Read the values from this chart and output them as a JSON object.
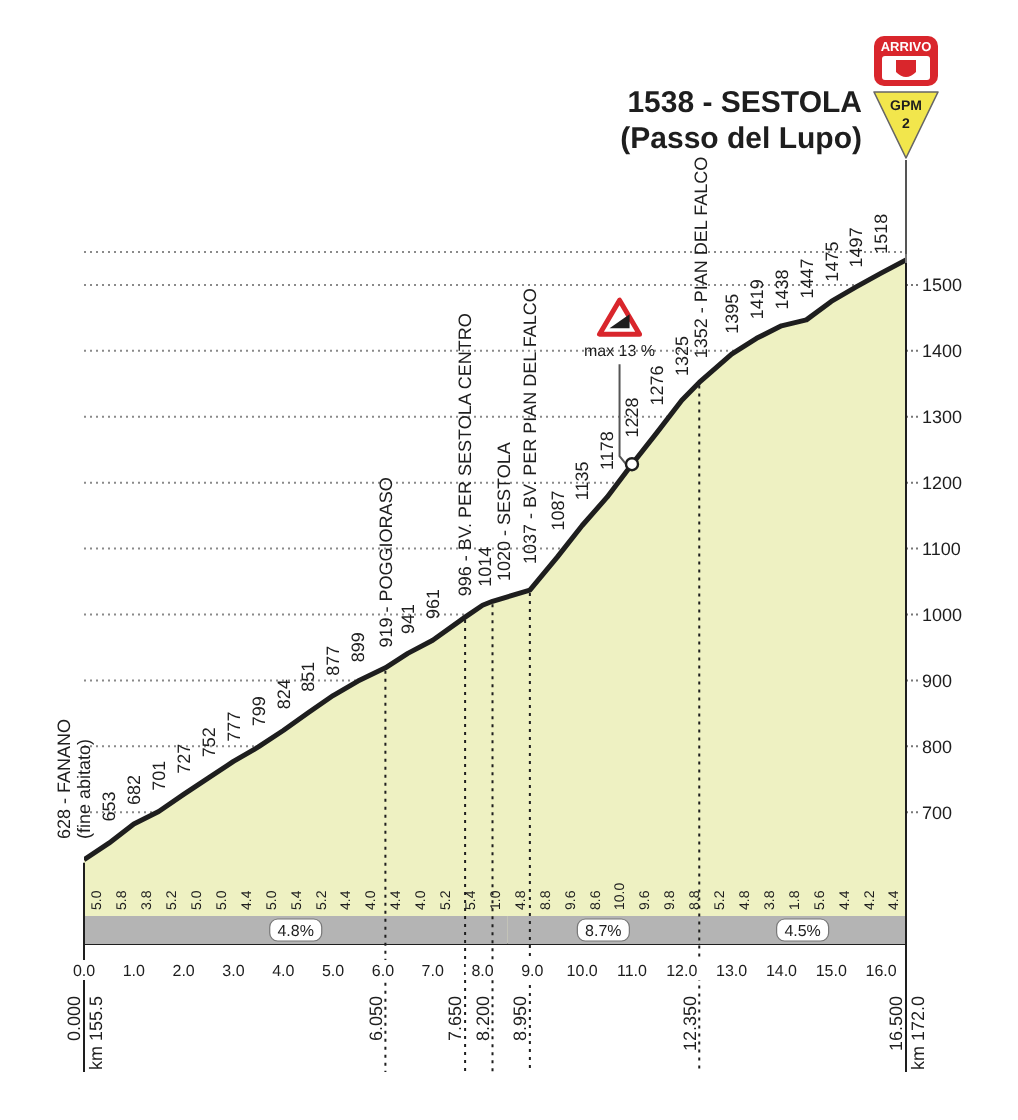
{
  "chart_data": {
    "type": "area",
    "title": "1538 - SESTOLA\n(Passo del Lupo)",
    "x": [
      0,
      0.5,
      1,
      1.5,
      2,
      2.5,
      3,
      3.5,
      4,
      4.5,
      5,
      5.5,
      6.05,
      6.5,
      7,
      7.65,
      8,
      8.2,
      8.95,
      9.5,
      10,
      10.5,
      11,
      11.5,
      12,
      12.35,
      13,
      13.5,
      14,
      14.5,
      15,
      15.5,
      16,
      16.5
    ],
    "values": [
      628,
      653,
      682,
      701,
      727,
      752,
      777,
      799,
      824,
      851,
      877,
      899,
      919,
      941,
      961,
      996,
      1014,
      1020,
      1037,
      1087,
      1135,
      1178,
      1228,
      1276,
      1325,
      1352,
      1395,
      1419,
      1438,
      1447,
      1475,
      1497,
      1518,
      1538
    ],
    "value_labels": [
      "628 - FANANO\n(fine abitato)",
      "653",
      "682",
      "701",
      "727",
      "752",
      "777",
      "799",
      "824",
      "851",
      "877",
      "899",
      "919 - POGGIORASO",
      "941",
      "961",
      "996 - BV. PER SESTOLA CENTRO",
      "1014",
      "1020 - SESTOLA",
      "1037 - BV. PER PIAN DEL FALCO",
      "1087",
      "1135",
      "1178",
      "1228",
      "1276",
      "1325",
      "1352 - PIAN DEL FALCO",
      "1395",
      "1419",
      "1438",
      "1447",
      "1475",
      "1497",
      "1518",
      null
    ],
    "color": "#eef1c2",
    "xlim": [
      0,
      16.5
    ],
    "xticks": [
      {
        "value": 0,
        "label": "0.0"
      },
      {
        "value": 1,
        "label": "1.0"
      },
      {
        "value": 2,
        "label": "2.0"
      },
      {
        "value": 3,
        "label": "3.0"
      },
      {
        "value": 4,
        "label": "4.0"
      },
      {
        "value": 5,
        "label": "5.0"
      },
      {
        "value": 6,
        "label": "6.0"
      },
      {
        "value": 7,
        "label": "7.0"
      },
      {
        "value": 8,
        "label": "8.0"
      },
      {
        "value": 9,
        "label": "9.0"
      },
      {
        "value": 10,
        "label": "10.0"
      },
      {
        "value": 11,
        "label": "11.0"
      },
      {
        "value": 12,
        "label": "12.0"
      },
      {
        "value": 13,
        "label": "13.0"
      },
      {
        "value": 14,
        "label": "14.0"
      },
      {
        "value": 15,
        "label": "15.0"
      },
      {
        "value": 16,
        "label": "16.0"
      }
    ],
    "ylim": [
      500,
      1550
    ],
    "yticks": [
      700,
      800,
      900,
      1000,
      1100,
      1200,
      1300,
      1400,
      1500
    ],
    "grid": "y",
    "ref_lines": [
      {
        "axis": "x",
        "value": 0,
        "label": "0.000\nkm 155.5",
        "line_style": "solid"
      },
      {
        "axis": "x",
        "value": 6.05,
        "label": "6.050",
        "line_style": "dotted"
      },
      {
        "axis": "x",
        "value": 7.65,
        "label": "7.650",
        "line_style": "dotted"
      },
      {
        "axis": "x",
        "value": 8.2,
        "label": "8.200",
        "line_style": "dotted"
      },
      {
        "axis": "x",
        "value": 8.95,
        "label": "8.950",
        "line_style": "dotted"
      },
      {
        "axis": "x",
        "value": 12.35,
        "label": "12.350",
        "line_style": "dotted"
      },
      {
        "axis": "x",
        "value": 16.5,
        "label": "16.500\nkm 172.0",
        "line_style": "solid"
      }
    ],
    "bands": [
      {
        "axis": "x",
        "from": 0,
        "to": 8.5,
        "label": "4.8%",
        "color": "#b4b4b4"
      },
      {
        "axis": "x",
        "from": 8.5,
        "to": 12.35,
        "label": "8.7%",
        "color": "#b4b4b4"
      },
      {
        "axis": "x",
        "from": 12.35,
        "to": 16.5,
        "label": "4.5%",
        "color": "#b4b4b4"
      }
    ],
    "annotations": [
      "ARRIVO",
      "GPM",
      "2",
      "5.0",
      "5.8",
      "3.8",
      "5.2",
      "5.0",
      "5.0",
      "4.4",
      "5.0",
      "5.4",
      "5.2",
      "4.4",
      "4.0",
      "4.4",
      "4.0",
      "5.2",
      "5.4",
      "1.0",
      "4.8",
      "8.8",
      "9.6",
      "8.6",
      "10.0",
      "9.6",
      "9.8",
      "8.8",
      "5.2",
      "4.8",
      "3.8",
      "1.8",
      "5.6",
      "4.4",
      "4.2",
      "4.4",
      {
        "text": "max 13 %",
        "x": 11,
        "y": 1228
      }
    ]
  }
}
